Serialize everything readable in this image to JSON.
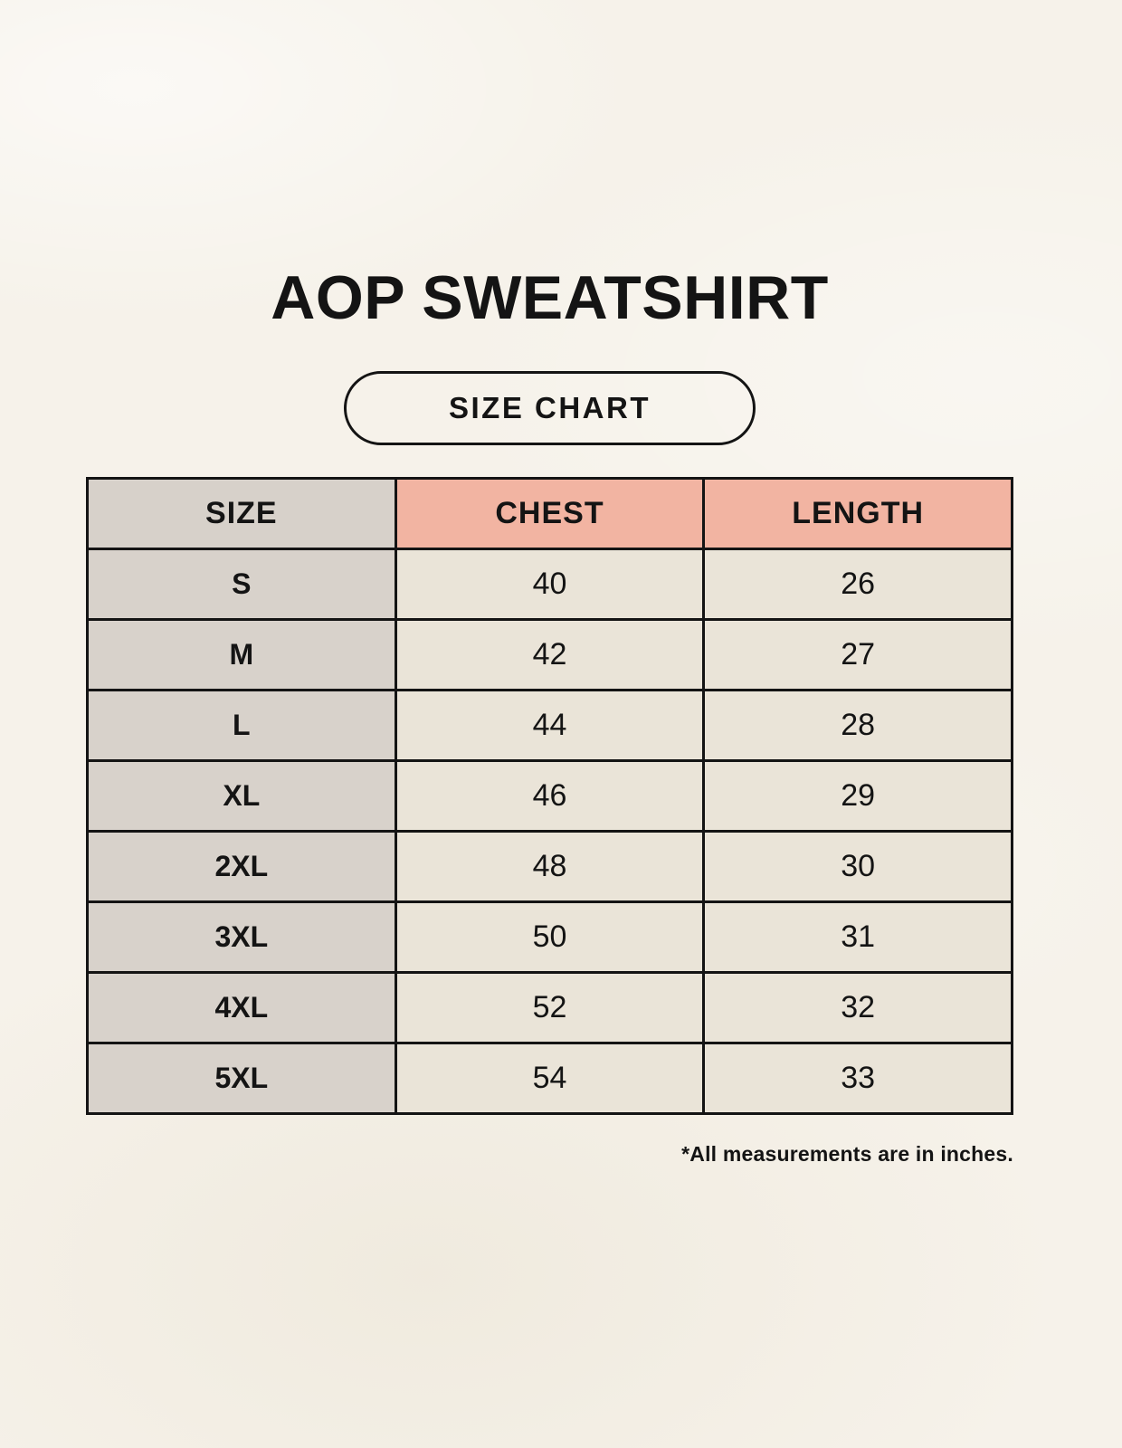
{
  "header": {
    "title": "AOP SWEATSHIRT",
    "badge_label": "SIZE CHART"
  },
  "table": {
    "columns": [
      {
        "key": "size",
        "label": "SIZE"
      },
      {
        "key": "chest",
        "label": "CHEST"
      },
      {
        "key": "length",
        "label": "LENGTH"
      }
    ],
    "rows": [
      [
        "S",
        "40",
        "26"
      ],
      [
        "M",
        "42",
        "27"
      ],
      [
        "L",
        "44",
        "28"
      ],
      [
        "XL",
        "46",
        "29"
      ],
      [
        "2XL",
        "48",
        "30"
      ],
      [
        "3XL",
        "50",
        "31"
      ],
      [
        "4XL",
        "52",
        "32"
      ],
      [
        "5XL",
        "54",
        "33"
      ]
    ]
  },
  "footnote": "*All measurements are in inches.",
  "colors": {
    "background": "#F6F2EA",
    "header_size_bg": "#D7D1CA",
    "header_measure_bg": "#F2B4A2",
    "size_col_bg": "#D8D2CB",
    "cell_bg": "#EAE4D8",
    "border": "#141414",
    "text": "#141414"
  },
  "chart_data": {
    "type": "table",
    "title": "AOP SWEATSHIRT",
    "subtitle": "SIZE CHART",
    "columns": [
      "SIZE",
      "CHEST",
      "LENGTH"
    ],
    "rows": [
      {
        "size": "S",
        "chest": 40,
        "length": 26
      },
      {
        "size": "M",
        "chest": 42,
        "length": 27
      },
      {
        "size": "L",
        "chest": 44,
        "length": 28
      },
      {
        "size": "XL",
        "chest": 46,
        "length": 29
      },
      {
        "size": "2XL",
        "chest": 48,
        "length": 30
      },
      {
        "size": "3XL",
        "chest": 50,
        "length": 31
      },
      {
        "size": "4XL",
        "chest": 52,
        "length": 32
      },
      {
        "size": "5XL",
        "chest": 54,
        "length": 33
      }
    ],
    "units": "inches",
    "note": "*All measurements are in inches."
  }
}
